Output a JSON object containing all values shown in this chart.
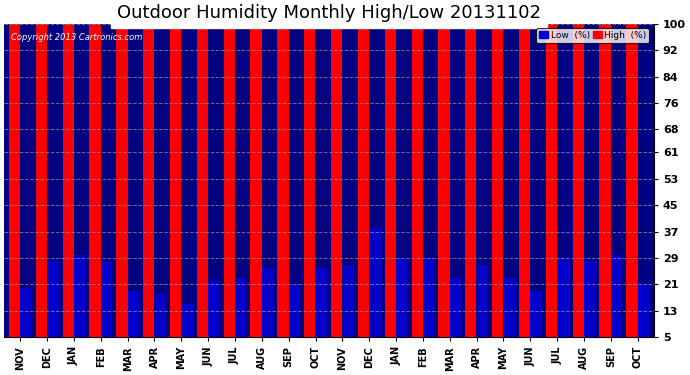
{
  "title": "Outdoor Humidity Monthly High/Low 20131102",
  "copyright": "Copyright 2013 Cartronics.com",
  "categories": [
    "NOV",
    "DEC",
    "JAN",
    "FEB",
    "MAR",
    "APR",
    "MAY",
    "JUN",
    "JUL",
    "AUG",
    "SEP",
    "OCT",
    "NOV",
    "DEC",
    "JAN",
    "FEB",
    "MAR",
    "APR",
    "MAY",
    "JUN",
    "JUL",
    "AUG",
    "SEP",
    "OCT"
  ],
  "high_values": [
    100,
    100,
    100,
    100,
    100,
    100,
    100,
    100,
    100,
    100,
    100,
    100,
    100,
    100,
    100,
    100,
    100,
    100,
    100,
    100,
    100,
    100,
    100,
    100
  ],
  "low_values": [
    20,
    28,
    30,
    28,
    19,
    18,
    15,
    22,
    23,
    26,
    21,
    26,
    27,
    38,
    29,
    29,
    23,
    27,
    23,
    19,
    29,
    28,
    30,
    21
  ],
  "high_color": "#ff0000",
  "low_color": "#0000cd",
  "bg_color": "#000080",
  "plot_bg_color": "#000080",
  "fig_bg_color": "#ffffff",
  "yticks": [
    5,
    13,
    21,
    29,
    37,
    45,
    53,
    61,
    68,
    76,
    84,
    92,
    100
  ],
  "ylim": [
    5,
    100
  ],
  "grid_color": "#888888",
  "title_fontsize": 13,
  "label_fontsize": 7,
  "tick_fontsize": 8,
  "legend_low_label": "Low  (%)",
  "legend_high_label": "High  (%)"
}
